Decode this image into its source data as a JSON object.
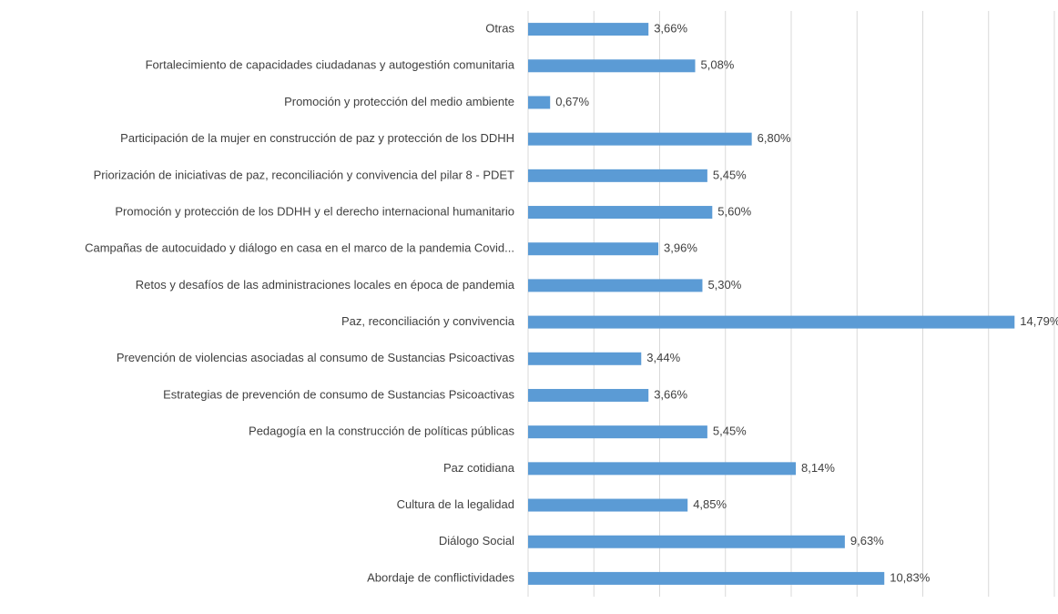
{
  "chart_data": {
    "type": "barh",
    "categories": [
      "Otras",
      "Fortalecimiento de capacidades ciudadanas y autogestión comunitaria",
      "Promoción y protección del medio ambiente",
      "Participación de la mujer en construcción de paz y protección de los DDHH",
      "Priorización de iniciativas de paz, reconciliación y convivencia del pilar 8 - PDET",
      "Promoción y protección de los DDHH y el derecho internacional humanitario",
      "Campañas de autocuidado y diálogo en casa en el marco de la pandemia Covid...",
      "Retos y desafíos de las administraciones locales en época de pandemia",
      "Paz, reconciliación y convivencia",
      "Prevención de violencias asociadas al consumo de Sustancias Psicoactivas",
      "Estrategias de prevención de consumo de Sustancias Psicoactivas",
      "Pedagogía en la construcción de políticas públicas",
      "Paz cotidiana",
      "Cultura de la legalidad",
      "Diálogo Social",
      "Abordaje de conflictividades"
    ],
    "values": [
      3.66,
      5.08,
      0.67,
      6.8,
      5.45,
      5.6,
      3.96,
      5.3,
      14.79,
      3.44,
      3.66,
      5.45,
      8.14,
      4.85,
      9.63,
      10.83
    ],
    "value_labels": [
      "3,66%",
      "5,08%",
      "0,67%",
      "6,80%",
      "5,45%",
      "5,60%",
      "3,96%",
      "5,30%",
      "14,79%",
      "3,44%",
      "3,66%",
      "5,45%",
      "8,14%",
      "4,85%",
      "9,63%",
      "10,83%"
    ],
    "color": "#5b9bd5",
    "xlim": [
      0,
      16
    ],
    "xticks": [
      0,
      2,
      4,
      6,
      8,
      10,
      12,
      14,
      16
    ],
    "grid": true
  }
}
